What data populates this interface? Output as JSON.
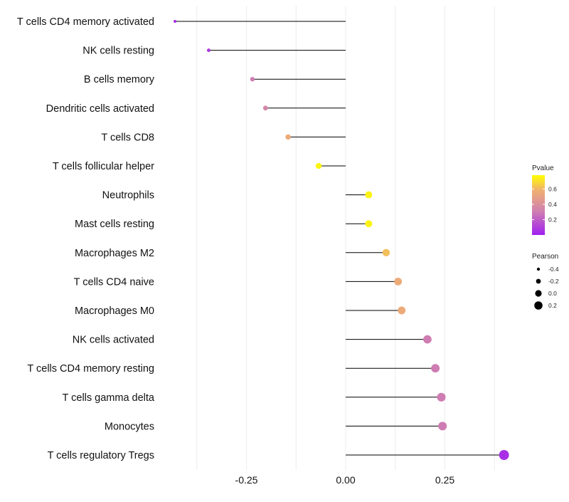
{
  "chart_data": {
    "type": "lollipop",
    "title": "",
    "xlabel": "",
    "ylabel": "",
    "xlim": [
      -0.43,
      0.41
    ],
    "x_ticks": [
      {
        "value": -0.25,
        "label": "-0.25"
      },
      {
        "value": 0.0,
        "label": "0.00"
      },
      {
        "value": 0.25,
        "label": "0.25"
      }
    ],
    "grid": true,
    "categories": [
      "T cells CD4 memory activated",
      "NK cells resting",
      "B cells memory",
      "Dendritic cells activated",
      "T cells CD8",
      "T cells follicular helper",
      "Neutrophils",
      "Mast cells resting",
      "Macrophages M2",
      "T cells CD4 naive",
      "Macrophages M0",
      "NK cells activated",
      "T cells CD4 memory resting",
      "T cells gamma delta",
      "Monocytes",
      "T cells regulatory  Tregs"
    ],
    "pearson": [
      -0.43,
      -0.345,
      -0.235,
      -0.202,
      -0.145,
      -0.068,
      0.058,
      0.058,
      0.102,
      0.132,
      0.141,
      0.206,
      0.226,
      0.241,
      0.244,
      0.399
    ],
    "pvalue": [
      0.02,
      0.08,
      0.3,
      0.35,
      0.55,
      0.75,
      0.75,
      0.75,
      0.62,
      0.55,
      0.55,
      0.3,
      0.3,
      0.3,
      0.3,
      0.05
    ],
    "color_legend": {
      "title": "Pvalue",
      "ticks": [
        {
          "value": 0.2,
          "label": "0.2"
        },
        {
          "value": 0.4,
          "label": "0.4"
        },
        {
          "value": 0.6,
          "label": "0.6"
        }
      ],
      "range": [
        0.0,
        0.78
      ],
      "color_low": "#a020f0",
      "color_mid": "#d080b0",
      "color_mid2": "#f0b070",
      "color_high": "#ffff00"
    },
    "size_legend": {
      "title": "Pearson",
      "ticks": [
        {
          "value": -0.4,
          "label": "-0.4"
        },
        {
          "value": -0.2,
          "label": "-0.2"
        },
        {
          "value": 0.0,
          "label": "0.0"
        },
        {
          "value": 0.2,
          "label": "0.2"
        }
      ]
    }
  }
}
